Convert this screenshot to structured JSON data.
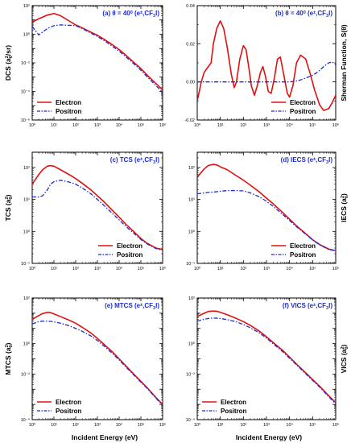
{
  "figure": {
    "xlabel": "Incident Energy (eV)"
  },
  "colors": {
    "electron": "#e01010",
    "positron": "#1a2bd6",
    "title": "#1a2bd6"
  },
  "chart_data": [
    {
      "id": "a",
      "type": "line",
      "title": "(a) θ = 40⁰ (e±,CF₃I)",
      "title_parts": [
        "(a) θ = 40",
        "0",
        " (e",
        "±",
        ",CF",
        "3",
        "I)"
      ],
      "ylabel": "DCS (a₀²/sr)",
      "ylabel_parts": [
        "DCS (a",
        "0",
        "2",
        "/sr)"
      ],
      "ylabel_side": "left",
      "xscale": "log",
      "yscale": "log",
      "xlim": [
        1,
        1000000
      ],
      "ylim": [
        1e-06,
        100
      ],
      "xticks": [
        "10⁰",
        "10¹",
        "10²",
        "10³",
        "10⁴",
        "10⁵",
        "10⁶"
      ],
      "yticks": [
        "10⁻⁶",
        "10⁻⁴",
        "10⁻²",
        "10⁰",
        "10²"
      ],
      "legend": "bottom-left",
      "x": [
        1,
        2,
        5,
        10,
        20,
        50,
        100,
        200,
        500,
        1000,
        2000,
        5000,
        10000,
        20000,
        50000,
        100000,
        200000,
        500000,
        1000000
      ],
      "series": [
        {
          "name": "Electron",
          "values": [
            7,
            12,
            22,
            28,
            20,
            8.5,
            4.5,
            2.8,
            1.4,
            0.85,
            0.45,
            0.18,
            0.085,
            0.035,
            0.01,
            0.004,
            0.0013,
            0.00035,
            0.00013
          ]
        },
        {
          "name": "Positron",
          "values": [
            3.5,
            0.9,
            2.5,
            4,
            4.5,
            4.2,
            4,
            2.5,
            1.2,
            0.7,
            0.37,
            0.14,
            0.065,
            0.027,
            0.008,
            0.003,
            0.001,
            0.00025,
            9e-05
          ]
        }
      ]
    },
    {
      "id": "b",
      "type": "line",
      "title": "(b) θ = 40⁰ (e±,CF₃I)",
      "title_parts": [
        "(b) θ = 40",
        "0",
        " (e",
        "±",
        ",CF",
        "3",
        "I)"
      ],
      "ylabel": "Sherman Function, S(θ)",
      "ylabel_parts": [
        "Sherman Function, S(θ)"
      ],
      "ylabel_side": "right",
      "xscale": "log",
      "yscale": "linear",
      "xlim": [
        1,
        1000000
      ],
      "ylim": [
        -0.02,
        0.04
      ],
      "xticks": [
        "10⁰",
        "10¹",
        "10²",
        "10³",
        "10⁴",
        "10⁵",
        "10⁶"
      ],
      "yticks": [
        "-0.02",
        "0.00",
        "0.02",
        "0.04"
      ],
      "legend": "bottom-right",
      "x": [
        1,
        1.5,
        2,
        3,
        4,
        5,
        7,
        10,
        14,
        20,
        30,
        40,
        50,
        70,
        100,
        130,
        170,
        220,
        300,
        400,
        550,
        700,
        900,
        1200,
        1600,
        2200,
        3000,
        4000,
        6000,
        8000,
        10000,
        14000,
        20000,
        30000,
        50000,
        80000,
        120000,
        200000,
        300000,
        500000,
        700000,
        1000000
      ],
      "series": [
        {
          "name": "Electron",
          "values": [
            -0.01,
            0.0,
            0.005,
            0.008,
            0.01,
            0.02,
            0.028,
            0.032,
            0.028,
            0.018,
            0.004,
            -0.003,
            0.0,
            0.012,
            0.019,
            0.017,
            0.008,
            -0.002,
            -0.007,
            -0.002,
            0.005,
            0.008,
            0.003,
            -0.005,
            -0.006,
            0.002,
            0.012,
            0.013,
            0.002,
            -0.006,
            -0.008,
            -0.002,
            0.01,
            0.014,
            0.012,
            0.004,
            -0.004,
            -0.012,
            -0.015,
            -0.014,
            -0.011,
            -0.007
          ]
        },
        {
          "name": "Positron",
          "values": [
            0,
            0,
            0,
            0,
            0,
            0,
            0,
            0,
            0,
            0,
            0,
            0,
            0,
            0,
            0,
            0,
            0,
            0,
            0,
            0,
            0,
            0,
            0,
            0,
            0,
            0,
            0,
            0,
            0,
            0,
            0,
            0.0002,
            0.0005,
            0.001,
            0.002,
            0.003,
            0.004,
            0.006,
            0.008,
            0.01,
            0.0105,
            0.009
          ]
        }
      ]
    },
    {
      "id": "c",
      "type": "line",
      "title": "(c) TCS (e±,CF₃I)",
      "title_parts": [
        "(c) TCS (e",
        "±",
        ",CF",
        "3",
        "I)"
      ],
      "ylabel": "TCS (a₀²)",
      "ylabel_parts": [
        "TCS (a",
        "0",
        "2",
        ")"
      ],
      "ylabel_side": "left",
      "xscale": "log",
      "yscale": "log",
      "xlim": [
        1,
        1000000
      ],
      "ylim": [
        0.1,
        300
      ],
      "xticks": [
        "10⁰",
        "10¹",
        "10²",
        "10³",
        "10⁴",
        "10⁵",
        "10⁶"
      ],
      "yticks": [
        "10⁻¹",
        "10⁰",
        "10¹",
        "10²"
      ],
      "legend": "bottom-right",
      "x": [
        1,
        2,
        3,
        5,
        7,
        10,
        20,
        50,
        100,
        200,
        500,
        1000,
        2000,
        5000,
        10000,
        20000,
        50000,
        100000,
        200000,
        500000,
        1000000
      ],
      "series": [
        {
          "name": "Electron",
          "values": [
            30,
            60,
            85,
            110,
            115,
            110,
            85,
            60,
            45,
            32,
            20,
            13,
            8.5,
            4.5,
            2.8,
            1.7,
            0.95,
            0.6,
            0.42,
            0.3,
            0.27
          ]
        },
        {
          "name": "Positron",
          "values": [
            12,
            12,
            13,
            20,
            30,
            36,
            40,
            35,
            30,
            23,
            15,
            10,
            6.5,
            3.6,
            2.3,
            1.45,
            0.85,
            0.56,
            0.4,
            0.29,
            0.26
          ]
        }
      ]
    },
    {
      "id": "d",
      "type": "line",
      "title": "(d) IECS (e±,CF₃I)",
      "title_parts": [
        "(d) IECS (e",
        "±",
        ",CF",
        "3",
        "I)"
      ],
      "ylabel": "IECS (a₀²)",
      "ylabel_parts": [
        "IECS (a",
        "0",
        "2",
        ")"
      ],
      "ylabel_side": "right",
      "xscale": "log",
      "yscale": "log",
      "xlim": [
        1,
        1000000
      ],
      "ylim": [
        0.1,
        300
      ],
      "xticks": [
        "10⁰",
        "10¹",
        "10²",
        "10³",
        "10⁴",
        "10⁵",
        "10⁶"
      ],
      "yticks": [
        "10⁻¹",
        "10⁰",
        "10¹",
        "10²"
      ],
      "legend": "bottom-right",
      "x": [
        1,
        2,
        3,
        5,
        7,
        10,
        20,
        50,
        100,
        200,
        500,
        1000,
        2000,
        5000,
        10000,
        20000,
        50000,
        100000,
        200000,
        500000,
        1000000
      ],
      "series": [
        {
          "name": "Electron",
          "values": [
            50,
            90,
            115,
            125,
            120,
            105,
            85,
            55,
            40,
            28,
            17,
            11,
            7.2,
            3.9,
            2.4,
            1.5,
            0.85,
            0.55,
            0.39,
            0.28,
            0.25
          ]
        },
        {
          "name": "Positron",
          "values": [
            15,
            16,
            16.5,
            17,
            17.5,
            18,
            19,
            19,
            18.5,
            16,
            12,
            8.8,
            6,
            3.4,
            2.2,
            1.4,
            0.82,
            0.54,
            0.38,
            0.27,
            0.25
          ]
        }
      ]
    },
    {
      "id": "e",
      "type": "line",
      "title": "(e) MTCS (e±,CF₃I)",
      "title_parts": [
        "(e) MTCS (e",
        "±",
        ",CF",
        "3",
        "I)"
      ],
      "ylabel": "MTCS (a₀²)",
      "ylabel_parts": [
        "MTCS (a",
        "0",
        "2",
        ")"
      ],
      "ylabel_side": "left",
      "xscale": "log",
      "yscale": "log",
      "xlim": [
        1,
        1000000
      ],
      "ylim": [
        1e-05,
        1000
      ],
      "xticks": [
        "10⁰",
        "10¹",
        "10²",
        "10³",
        "10⁴",
        "10⁵",
        "10⁶"
      ],
      "yticks": [
        "10⁻⁴",
        "10⁻²",
        "10⁰",
        "10²"
      ],
      "legend": "bottom-left",
      "x": [
        1,
        2,
        3,
        5,
        7,
        10,
        20,
        50,
        100,
        200,
        500,
        1000,
        2000,
        5000,
        10000,
        20000,
        50000,
        100000,
        200000,
        500000,
        1000000
      ],
      "series": [
        {
          "name": "Electron",
          "values": [
            40,
            70,
            95,
            115,
            110,
            90,
            60,
            35,
            22,
            12,
            5,
            2.2,
            0.9,
            0.28,
            0.1,
            0.035,
            0.009,
            0.0033,
            0.0012,
            0.00028,
            0.0001
          ]
        },
        {
          "name": "Positron",
          "values": [
            20,
            28,
            30,
            30,
            29,
            27,
            22,
            15,
            10,
            6.5,
            3.2,
            1.6,
            0.7,
            0.22,
            0.085,
            0.03,
            0.008,
            0.0029,
            0.0011,
            0.00025,
            9e-05
          ]
        }
      ]
    },
    {
      "id": "f",
      "type": "line",
      "title": "(f) VICS (e±,CF₃I)",
      "title_parts": [
        "(f) VICS (e",
        "±",
        ",CF",
        "3",
        "I)"
      ],
      "ylabel": "VICS (a₀²)",
      "ylabel_parts": [
        "VICS (a",
        "0",
        "2",
        ")"
      ],
      "ylabel_side": "right",
      "xscale": "log",
      "yscale": "log",
      "xlim": [
        1,
        1000000
      ],
      "ylim": [
        1e-05,
        1000
      ],
      "xticks": [
        "10⁰",
        "10¹",
        "10²",
        "10³",
        "10⁴",
        "10⁵",
        "10⁶"
      ],
      "yticks": [
        "10⁻⁴",
        "10⁻²",
        "10⁰",
        "10²"
      ],
      "legend": "bottom-left",
      "x": [
        1,
        2,
        3,
        5,
        7,
        10,
        20,
        50,
        100,
        200,
        500,
        1000,
        2000,
        5000,
        10000,
        20000,
        50000,
        100000,
        200000,
        500000,
        1000000
      ],
      "series": [
        {
          "name": "Electron",
          "values": [
            60,
            100,
            130,
            140,
            135,
            115,
            80,
            45,
            28,
            16,
            6.5,
            2.8,
            1.15,
            0.36,
            0.13,
            0.045,
            0.012,
            0.0043,
            0.0016,
            0.00037,
            0.00013
          ]
        },
        {
          "name": "Positron",
          "values": [
            30,
            40,
            45,
            48,
            47,
            45,
            38,
            27,
            18,
            11,
            5,
            2.3,
            0.95,
            0.3,
            0.11,
            0.04,
            0.0105,
            0.0038,
            0.0014,
            0.00032,
            0.00011
          ]
        }
      ]
    }
  ]
}
